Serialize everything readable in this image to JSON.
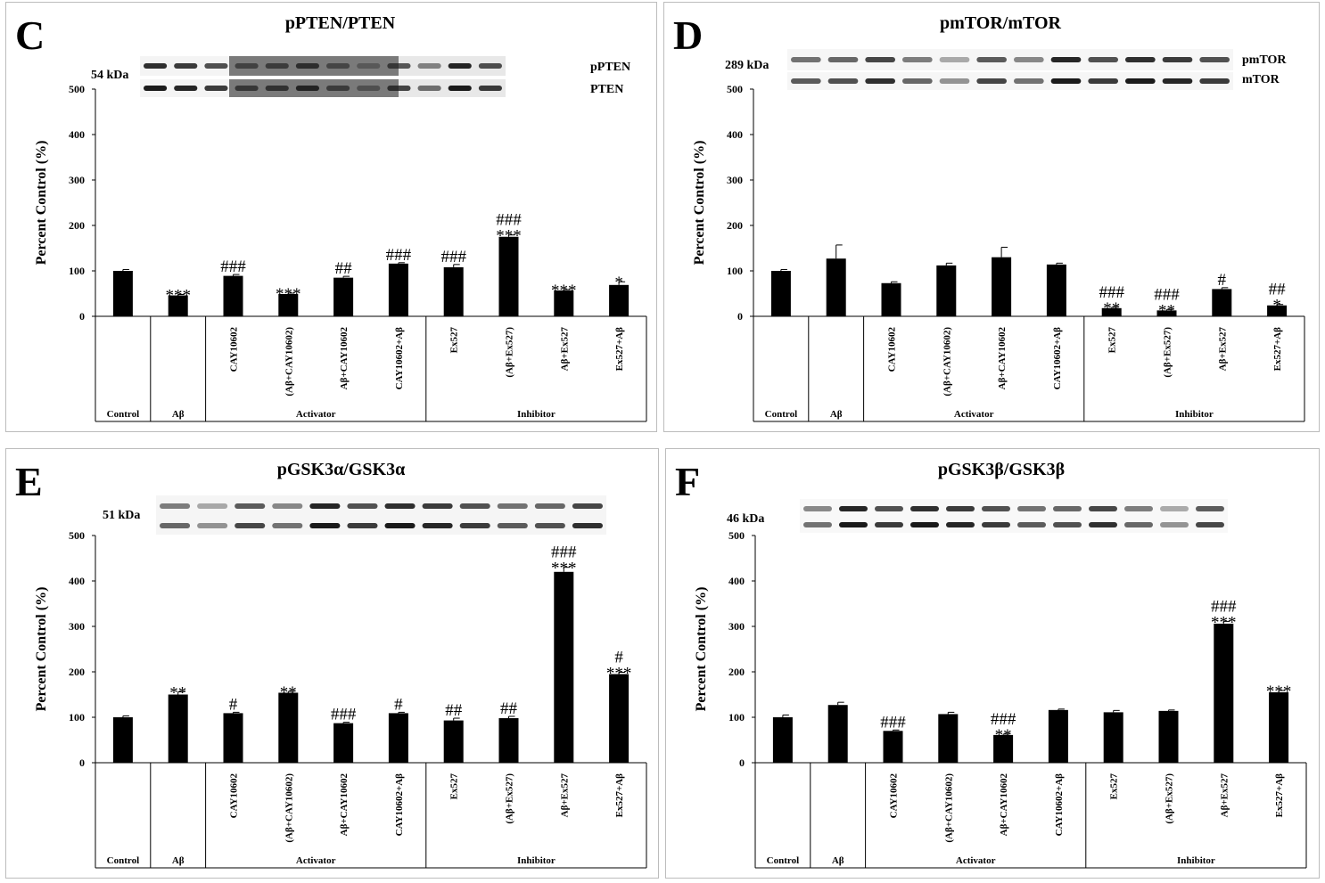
{
  "figure": {
    "categories": [
      "Control",
      "Aβ",
      "CAY10602",
      "(Aβ+CAY10602)",
      "Aβ+CAY10602",
      "CAY10602+Aβ",
      "Ex527",
      "(Aβ+Ex527)",
      "Aβ+Ex527",
      "Ex527+Aβ"
    ],
    "groups": [
      "Control",
      "Aβ",
      "Activator",
      "Inhibitor"
    ],
    "ylabel": "Percent Control (%)",
    "ylim": [
      0,
      500
    ],
    "yticks": [
      "0",
      "100",
      "200",
      "300",
      "400",
      "500"
    ]
  },
  "chart_data": [
    {
      "type": "bar",
      "panel": "C",
      "title": "pPTEN/PTEN",
      "kda": "54 kDa",
      "blot_labels": [
        "pPTEN",
        "PTEN"
      ],
      "categories": [
        "Control",
        "Aβ",
        "CAY10602",
        "(Aβ+CAY10602)",
        "Aβ+CAY10602",
        "CAY10602+Aβ",
        "Ex527",
        "(Aβ+Ex527)",
        "Aβ+Ex527",
        "Ex527+Aβ"
      ],
      "values": [
        100,
        46,
        89,
        49,
        85,
        116,
        108,
        175,
        57,
        69
      ],
      "errors": [
        3,
        2,
        3,
        2,
        3,
        2,
        6,
        4,
        2,
        7
      ],
      "annotations": [
        [],
        [
          "***"
        ],
        [
          "###"
        ],
        [
          "***"
        ],
        [
          "##"
        ],
        [
          "###"
        ],
        [
          "###"
        ],
        [
          "***",
          "###"
        ],
        [
          "***"
        ],
        [
          "*"
        ]
      ],
      "ylabel": "Percent Control (%)",
      "ylim": [
        0,
        500
      ]
    },
    {
      "type": "bar",
      "panel": "D",
      "title": "pmTOR/mTOR",
      "kda": "289 kDa",
      "blot_labels": [
        "pmTOR",
        "mTOR"
      ],
      "categories": [
        "Control",
        "Aβ",
        "CAY10602",
        "(Aβ+CAY10602)",
        "Aβ+CAY10602",
        "CAY10602+Aβ",
        "Ex527",
        "(Aβ+Ex527)",
        "Aβ+Ex527",
        "Ex527+Aβ"
      ],
      "values": [
        100,
        127,
        73,
        112,
        130,
        114,
        18,
        13,
        60,
        24
      ],
      "errors": [
        3,
        30,
        3,
        5,
        22,
        3,
        2,
        2,
        3,
        2
      ],
      "annotations": [
        [],
        [],
        [],
        [],
        [],
        [],
        [
          "**",
          "###"
        ],
        [
          "**",
          "###"
        ],
        [
          "#"
        ],
        [
          "*",
          "##"
        ]
      ],
      "ylabel": "Percent Control (%)",
      "ylim": [
        0,
        500
      ]
    },
    {
      "type": "bar",
      "panel": "E",
      "title": "pGSK3α/GSK3α",
      "kda": "51 kDa",
      "blot_labels": [],
      "categories": [
        "Control",
        "Aβ",
        "CAY10602",
        "(Aβ+CAY10602)",
        "Aβ+CAY10602",
        "CAY10602+Aβ",
        "Ex527",
        "(Aβ+Ex527)",
        "Aβ+Ex527",
        "Ex527+Aβ"
      ],
      "values": [
        100,
        150,
        109,
        154,
        87,
        109,
        93,
        98,
        420,
        195
      ],
      "errors": [
        3,
        6,
        2,
        3,
        2,
        2,
        5,
        4,
        10,
        4
      ],
      "annotations": [
        [],
        [
          "**"
        ],
        [
          "#"
        ],
        [
          "**"
        ],
        [
          "###"
        ],
        [
          "#"
        ],
        [
          "##"
        ],
        [
          "##"
        ],
        [
          "***",
          "###"
        ],
        [
          "***",
          "#"
        ]
      ],
      "ylabel": "Percent Control (%)",
      "ylim": [
        0,
        500
      ]
    },
    {
      "type": "bar",
      "panel": "F",
      "title": "pGSK3β/GSK3β",
      "kda": "46 kDa",
      "blot_labels": [],
      "categories": [
        "Control",
        "Aβ",
        "CAY10602",
        "(Aβ+CAY10602)",
        "Aβ+CAY10602",
        "CAY10602+Aβ",
        "Ex527",
        "(Aβ+Ex527)",
        "Aβ+Ex527",
        "Ex527+Aβ"
      ],
      "values": [
        100,
        127,
        70,
        107,
        61,
        116,
        111,
        114,
        306,
        155
      ],
      "errors": [
        5,
        6,
        2,
        4,
        2,
        2,
        4,
        2,
        5,
        4
      ],
      "annotations": [
        [],
        [],
        [
          "###"
        ],
        [],
        [
          "**",
          "###"
        ],
        [],
        [],
        [],
        [
          "***",
          "###"
        ],
        [
          "***"
        ]
      ],
      "ylabel": "Percent Control (%)",
      "ylim": [
        0,
        500
      ]
    }
  ]
}
